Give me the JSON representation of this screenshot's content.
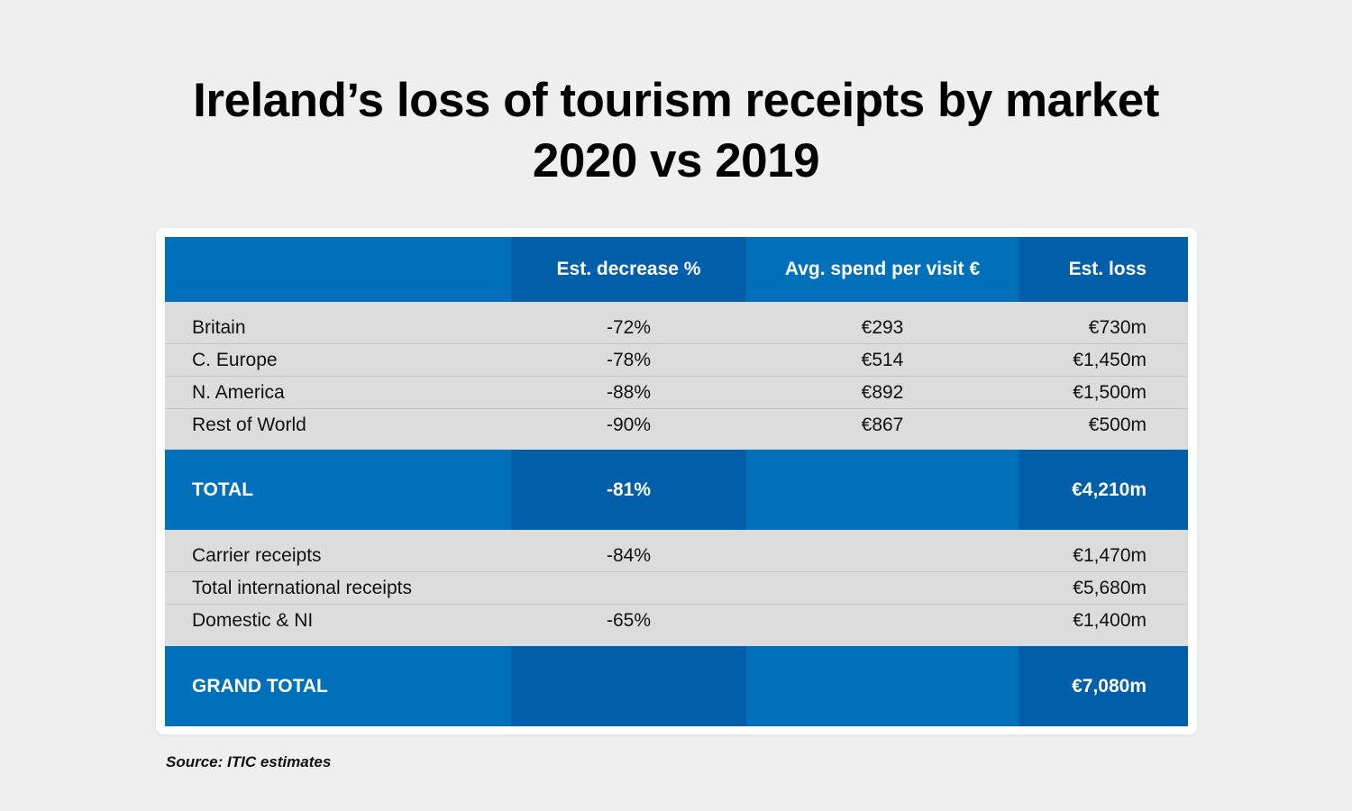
{
  "title_line1": "Ireland’s loss of tourism receipts by market",
  "title_line2": "2020 vs 2019",
  "source": "Source: ITIC estimates",
  "colors": {
    "header_blue": "#0070bb",
    "header_blue_dark": "#005fa8",
    "row_grey": "#dcdcdc",
    "background": "#efefef"
  },
  "chart_data": {
    "type": "table",
    "columns": [
      "",
      "Est. decrease %",
      "Avg. spend per visit €",
      "Est. loss"
    ],
    "rows": [
      [
        "Britain",
        "-72%",
        "€293",
        "€730m"
      ],
      [
        "C. Europe",
        "-78%",
        "€514",
        "€1,450m"
      ],
      [
        "N. America",
        "-88%",
        "€892",
        "€1,500m"
      ],
      [
        "Rest of World",
        "-90%",
        "€867",
        "€500m"
      ],
      [
        "TOTAL",
        "-81%",
        "",
        "€4,210m"
      ],
      [
        "Carrier receipts",
        "-84%",
        "",
        "€1,470m"
      ],
      [
        "Total international receipts",
        "",
        "",
        "€5,680m"
      ],
      [
        "Domestic & NI",
        "-65%",
        "",
        "€1,400m"
      ],
      [
        "GRAND TOTAL",
        "",
        "",
        "€7,080m"
      ]
    ]
  }
}
